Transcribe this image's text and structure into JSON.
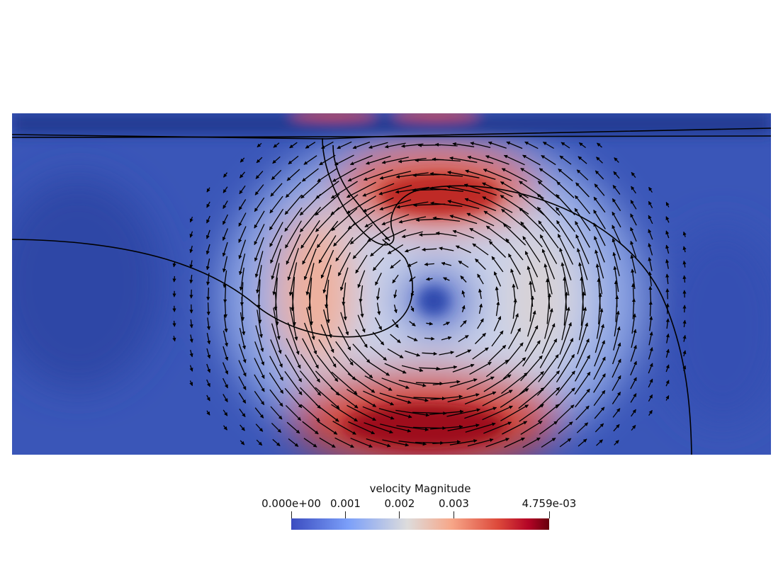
{
  "scene": {
    "field": "velocity",
    "colormap": [
      "#3b4cc0",
      "#7b9ff9",
      "#dddcdc",
      "#f7a789",
      "#dd4a3b",
      "#b40426",
      "#67000d"
    ],
    "background": "#ffffff"
  },
  "legend": {
    "title": "velocity Magnitude",
    "range": [
      0,
      0.004759
    ],
    "ticks": [
      {
        "label": "0.000e+00",
        "value": 0
      },
      {
        "label": "0.001",
        "value": 0.001
      },
      {
        "label": "0.002",
        "value": 0.002
      },
      {
        "label": "0.003",
        "value": 0.003
      },
      {
        "label": "4.759e-03",
        "value": 0.004759
      }
    ]
  }
}
